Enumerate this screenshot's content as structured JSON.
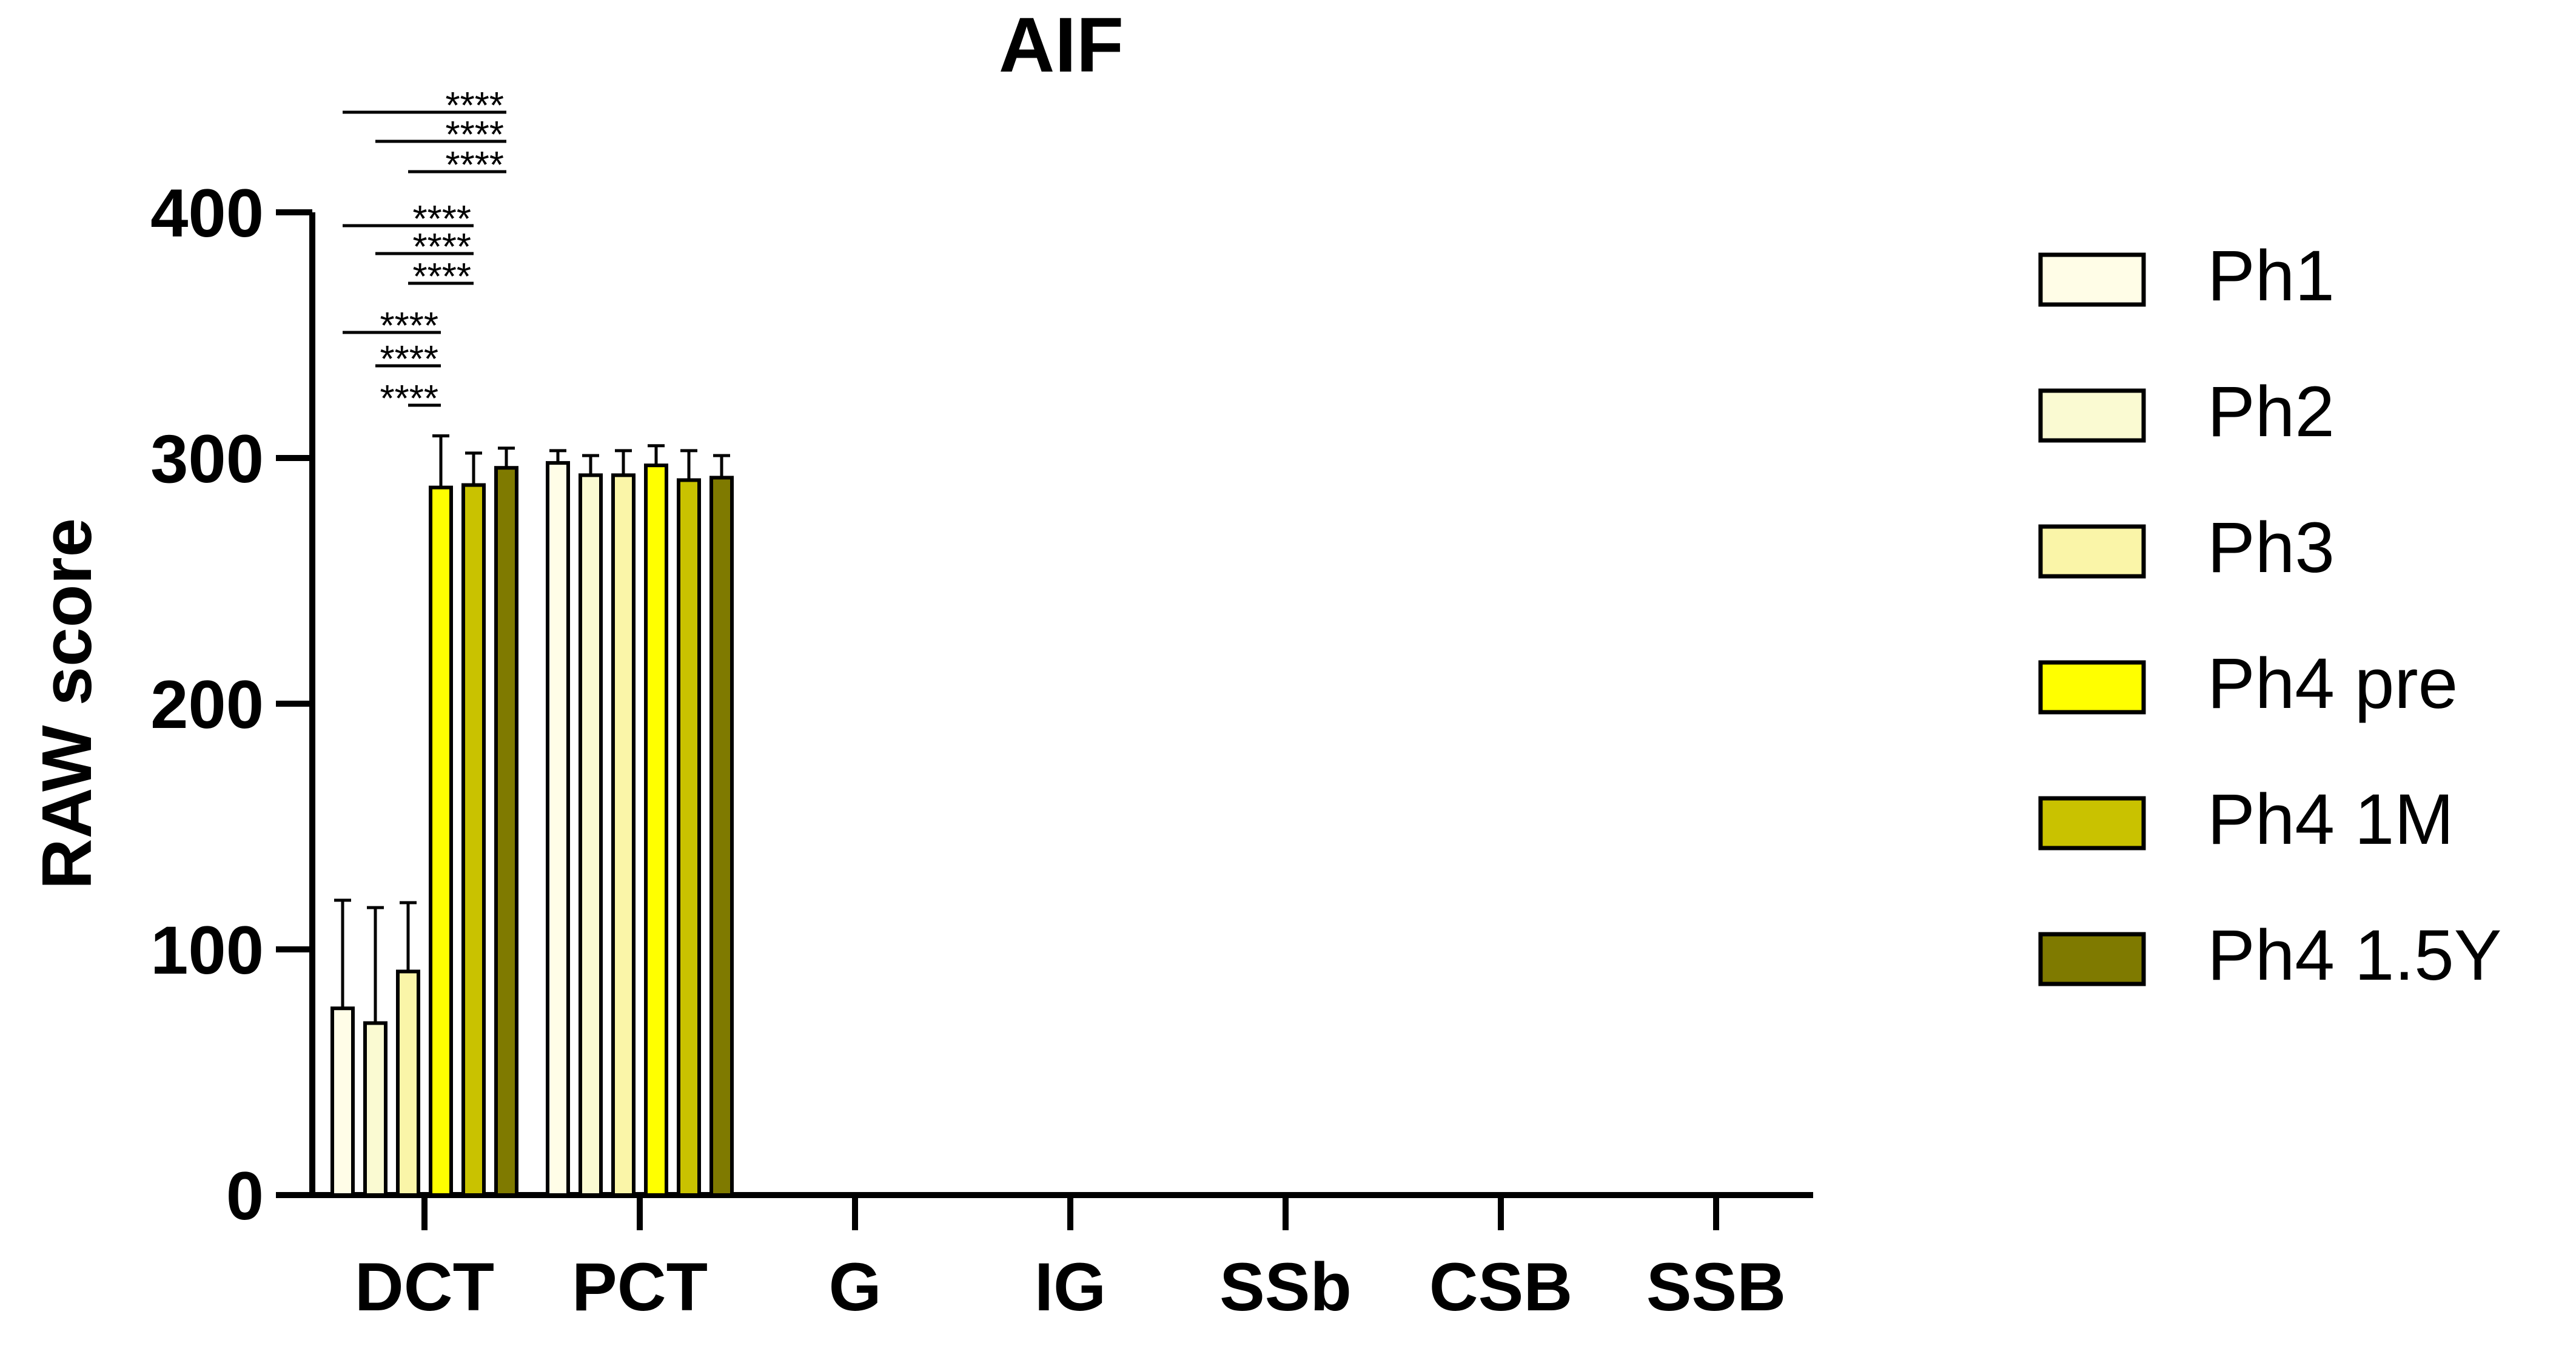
{
  "chart_data": {
    "type": "bar",
    "title": "AIF",
    "xlabel": "",
    "ylabel": "RAW score",
    "ylim": [
      0,
      400
    ],
    "yticks": [
      "0",
      "100",
      "200",
      "300",
      "400"
    ],
    "categories": [
      "DCT",
      "PCT",
      "G",
      "IG",
      "SSb",
      "CSB",
      "SSB"
    ],
    "legend_position": "right",
    "series": [
      {
        "name": "Ph1",
        "color": "#FFFDE7",
        "values": [
          76,
          298,
          0,
          0,
          0,
          0,
          0
        ],
        "errors": [
          44,
          5,
          0,
          0,
          0,
          0,
          0
        ]
      },
      {
        "name": "Ph2",
        "color": "#FAFAD2",
        "values": [
          70,
          293,
          0,
          0,
          0,
          0,
          0
        ],
        "errors": [
          47,
          8,
          0,
          0,
          0,
          0,
          0
        ]
      },
      {
        "name": "Ph3",
        "color": "#FAF5A8",
        "values": [
          91,
          293,
          0,
          0,
          0,
          0,
          0
        ],
        "errors": [
          28,
          10,
          0,
          0,
          0,
          0,
          0
        ]
      },
      {
        "name": "Ph4 pre",
        "color": "#FFFF00",
        "values": [
          288,
          297,
          0,
          0,
          0,
          0,
          0
        ],
        "errors": [
          21,
          8,
          0,
          0,
          0,
          0,
          0
        ]
      },
      {
        "name": "Ph4 1M",
        "color": "#C9C200",
        "values": [
          289,
          291,
          0,
          0,
          0,
          0,
          0
        ],
        "errors": [
          13,
          12,
          0,
          0,
          0,
          0,
          0
        ]
      },
      {
        "name": "Ph4 1.5Y",
        "color": "#7F7A00",
        "values": [
          296,
          292,
          0,
          0,
          0,
          0,
          0
        ],
        "errors": [
          8,
          9,
          0,
          0,
          0,
          0,
          0
        ]
      }
    ],
    "significance": [
      {
        "category": "DCT",
        "from": "Ph1",
        "to": "Ph4 1.5Y",
        "label": "****"
      },
      {
        "category": "DCT",
        "from": "Ph2",
        "to": "Ph4 1.5Y",
        "label": "****"
      },
      {
        "category": "DCT",
        "from": "Ph3",
        "to": "Ph4 1.5Y",
        "label": "****"
      },
      {
        "category": "DCT",
        "from": "Ph1",
        "to": "Ph4 1M",
        "label": "****"
      },
      {
        "category": "DCT",
        "from": "Ph2",
        "to": "Ph4 1M",
        "label": "****"
      },
      {
        "category": "DCT",
        "from": "Ph3",
        "to": "Ph4 1M",
        "label": "****"
      },
      {
        "category": "DCT",
        "from": "Ph1",
        "to": "Ph4 pre",
        "label": "****"
      },
      {
        "category": "DCT",
        "from": "Ph2",
        "to": "Ph4 pre",
        "label": "****"
      },
      {
        "category": "DCT",
        "from": "Ph3",
        "to": "Ph4 pre",
        "label": "****"
      }
    ]
  }
}
